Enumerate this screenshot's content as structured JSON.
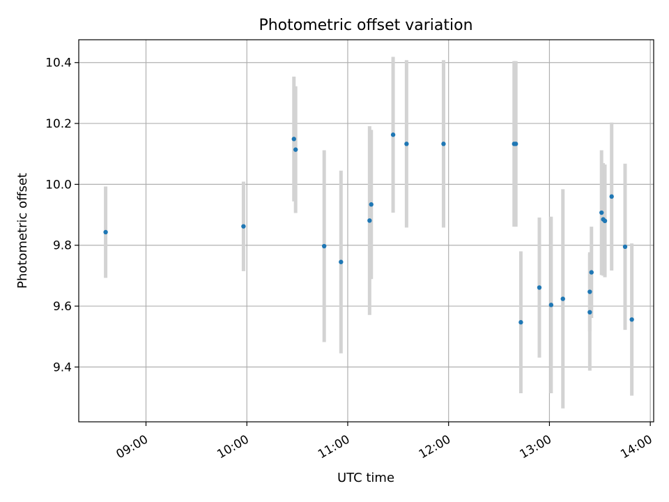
{
  "chart_data": {
    "type": "scatter",
    "title": "Photometric offset variation",
    "xlabel": "UTC time",
    "ylabel": "Photometric offset",
    "x_axis_type": "time",
    "xlim": [
      "08:20",
      "14:02"
    ],
    "ylim": [
      9.22,
      10.475
    ],
    "x_ticks": [
      "09:00",
      "10:00",
      "11:00",
      "12:00",
      "13:00",
      "14:00"
    ],
    "y_ticks": [
      9.4,
      9.6,
      9.8,
      10.0,
      10.2,
      10.4
    ],
    "y_tick_labels": [
      "9.4",
      "9.6",
      "9.8",
      "10.0",
      "10.2",
      "10.4"
    ],
    "grid": true,
    "marker_color": "#1f77b4",
    "errorbar_color": "#d3d3d3",
    "series": [
      {
        "points": [
          {
            "x": "08:36",
            "y": 9.843,
            "err": 0.15
          },
          {
            "x": "09:58",
            "y": 9.862,
            "err": 0.147
          },
          {
            "x": "10:28",
            "y": 10.149,
            "err": 0.205
          },
          {
            "x": "10:29",
            "y": 10.114,
            "err": 0.208
          },
          {
            "x": "10:46",
            "y": 9.797,
            "err": 0.315
          },
          {
            "x": "10:56",
            "y": 9.745,
            "err": 0.3
          },
          {
            "x": "11:13",
            "y": 9.881,
            "err": 0.31
          },
          {
            "x": "11:14",
            "y": 9.934,
            "err": 0.245
          },
          {
            "x": "11:27",
            "y": 10.163,
            "err": 0.256
          },
          {
            "x": "11:35",
            "y": 10.133,
            "err": 0.275
          },
          {
            "x": "11:57",
            "y": 10.133,
            "err": 0.275
          },
          {
            "x": "12:39",
            "y": 10.133,
            "err": 0.272
          },
          {
            "x": "12:40",
            "y": 10.133,
            "err": 0.272
          },
          {
            "x": "12:43",
            "y": 9.547,
            "err": 0.233
          },
          {
            "x": "12:54",
            "y": 9.661,
            "err": 0.23
          },
          {
            "x": "13:01",
            "y": 9.604,
            "err": 0.29
          },
          {
            "x": "13:08",
            "y": 9.624,
            "err": 0.36
          },
          {
            "x": "13:24",
            "y": 9.58,
            "err": 0.192
          },
          {
            "x": "13:24",
            "y": 9.647,
            "err": 0.13
          },
          {
            "x": "13:25",
            "y": 9.711,
            "err": 0.15
          },
          {
            "x": "13:31",
            "y": 9.907,
            "err": 0.205
          },
          {
            "x": "13:32",
            "y": 9.885,
            "err": 0.185
          },
          {
            "x": "13:33",
            "y": 9.88,
            "err": 0.185
          },
          {
            "x": "13:37",
            "y": 9.96,
            "err": 0.243
          },
          {
            "x": "13:45",
            "y": 9.795,
            "err": 0.273
          },
          {
            "x": "13:49",
            "y": 9.556,
            "err": 0.25
          }
        ]
      }
    ]
  }
}
